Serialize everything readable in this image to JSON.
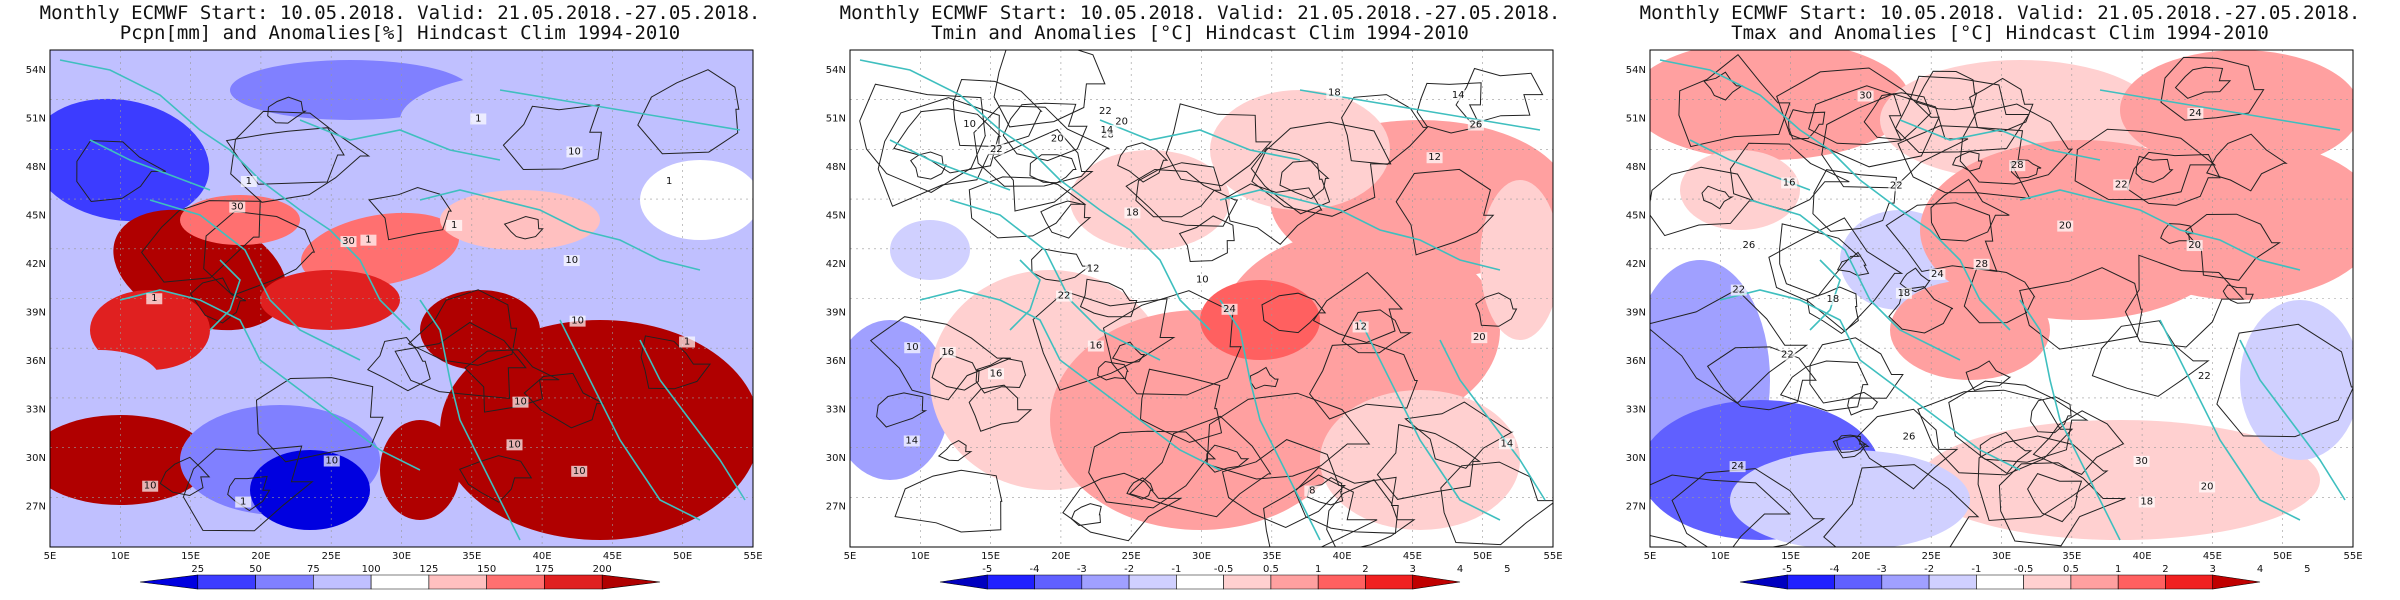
{
  "panels": [
    {
      "title_line1": "Monthly ECMWF Start: 10.05.2018. Valid: 21.05.2018.-27.05.2018.",
      "title_line2": "Pcpn[mm] and Anomalies[%] Hindcast Clim 1994-2010",
      "colorbar_ticks": [
        "25",
        "50",
        "75",
        "100",
        "125",
        "150",
        "175",
        "200"
      ],
      "contour_labels": [
        "10",
        "10",
        "10",
        "10",
        "30",
        "10",
        "10",
        "30",
        "10",
        "10",
        "1",
        "1",
        "1",
        "1",
        "1",
        "1",
        "1",
        "1"
      ]
    },
    {
      "title_line1": "Monthly ECMWF Start: 10.05.2018. Valid: 21.05.2018.-27.05.2018.",
      "title_line2": "Tmin and Anomalies [°C] Hindcast Clim 1994-2010",
      "colorbar_ticks": [
        "-5",
        "-4",
        "-3",
        "-2",
        "-1",
        "-0.5",
        "0.5",
        "1",
        "2",
        "3",
        "4",
        "5"
      ],
      "contour_labels": [
        "10",
        "10",
        "10",
        "12",
        "8",
        "12",
        "14",
        "14",
        "12",
        "14",
        "16",
        "16",
        "18",
        "20",
        "16",
        "18",
        "20",
        "22",
        "22",
        "24",
        "26",
        "20",
        "22",
        "28",
        "14"
      ]
    },
    {
      "title_line1": "Monthly ECMWF Start: 10.05.2018. Valid: 21.05.2018.-27.05.2018.",
      "title_line2": "Tmax and Anomalies [°C] Hindcast Clim 1994-2010",
      "colorbar_ticks": [
        "-5",
        "-4",
        "-3",
        "-2",
        "-1",
        "-0.5",
        "0.5",
        "1",
        "2",
        "3",
        "4",
        "5"
      ],
      "contour_labels": [
        "18",
        "18",
        "16",
        "20",
        "22",
        "24",
        "26",
        "20",
        "18",
        "22",
        "24",
        "28",
        "22",
        "22",
        "26",
        "28",
        "30",
        "30",
        "20",
        "22",
        "24"
      ]
    }
  ],
  "axes": {
    "lat_labels": [
      "54N",
      "51N",
      "48N",
      "45N",
      "42N",
      "39N",
      "36N",
      "33N",
      "30N",
      "27N"
    ],
    "lon_labels": [
      "5E",
      "10E",
      "15E",
      "20E",
      "25E",
      "30E",
      "35E",
      "40E",
      "45E",
      "50E",
      "55E"
    ]
  },
  "colors": {
    "coast": "#3fbfbf",
    "precip_scale": [
      "#0000e0",
      "#3c3cff",
      "#8080ff",
      "#c0c0ff",
      "#ffffff",
      "#ffc0c0",
      "#ff7070",
      "#e02020",
      "#b00000"
    ],
    "temp_scale": [
      "#0000c0",
      "#2020ff",
      "#6060ff",
      "#a0a0ff",
      "#d0d0ff",
      "#ffffff",
      "#ffd0d0",
      "#ffa0a0",
      "#ff6060",
      "#f02020",
      "#c00000"
    ]
  }
}
